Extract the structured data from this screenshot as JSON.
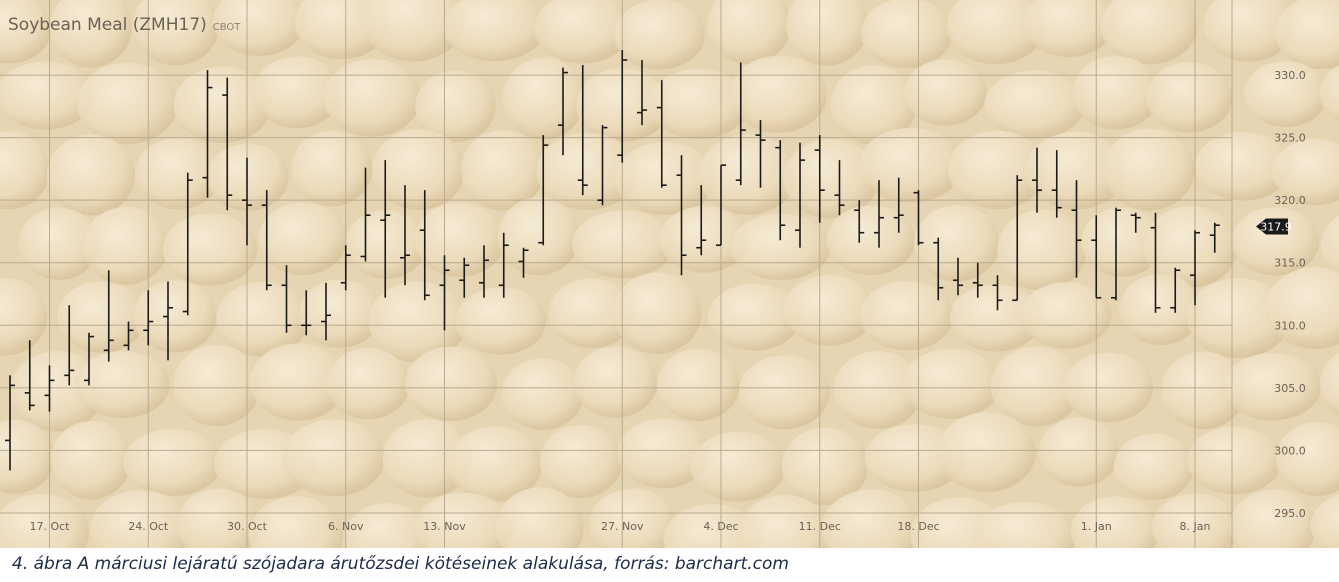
{
  "chart_data": {
    "type": "ohlc",
    "title": "Soybean Meal (ZMH17)",
    "exchange": "CBOT",
    "categories": [
      null,
      null,
      "17. Oct",
      null,
      null,
      null,
      null,
      "24. Oct",
      null,
      null,
      null,
      null,
      "30. Oct",
      null,
      null,
      null,
      null,
      "6. Nov",
      null,
      null,
      null,
      null,
      "13. Nov",
      null,
      null,
      null,
      null,
      null,
      null,
      null,
      null,
      "27. Nov",
      null,
      null,
      null,
      null,
      "4. Dec",
      null,
      null,
      null,
      null,
      "11. Dec",
      null,
      null,
      null,
      null,
      "18. Dec",
      null,
      null,
      null,
      null,
      null,
      null,
      null,
      null,
      "1. Jan",
      null,
      null,
      null,
      null,
      "8. Jan",
      null
    ],
    "open": [
      300.8,
      304.6,
      304.4,
      306.0,
      305.6,
      308.0,
      308.4,
      309.6,
      310.7,
      311.1,
      321.8,
      328.4,
      320.0,
      319.6,
      313.2,
      310.0,
      310.3,
      313.4,
      315.5,
      318.4,
      315.4,
      317.6,
      313.2,
      313.6,
      313.4,
      313.2,
      315.1,
      316.6,
      326.0,
      321.6,
      320.0,
      323.6,
      327.0,
      327.4,
      322.0,
      316.2,
      316.4,
      321.6,
      325.2,
      324.2,
      317.6,
      324.0,
      320.4,
      319.2,
      317.4,
      318.6,
      320.6,
      316.6,
      313.6,
      313.4,
      313.2,
      312.0,
      321.6,
      320.8,
      319.2,
      316.8,
      312.2,
      318.8,
      317.8,
      311.4,
      314.0,
      317.2
    ],
    "high": [
      306.0,
      308.8,
      306.8,
      311.6,
      309.4,
      314.4,
      310.3,
      312.8,
      313.5,
      322.2,
      330.4,
      329.8,
      323.4,
      320.8,
      314.8,
      312.8,
      313.4,
      316.4,
      322.6,
      323.2,
      321.2,
      320.8,
      315.6,
      315.4,
      316.4,
      317.4,
      316.2,
      325.2,
      330.6,
      330.8,
      326.0,
      332.0,
      331.2,
      329.6,
      323.6,
      321.2,
      322.8,
      331.0,
      326.4,
      324.8,
      324.6,
      325.2,
      323.2,
      320.0,
      321.6,
      321.8,
      320.8,
      317.0,
      315.4,
      315.0,
      314.0,
      322.0,
      324.2,
      324.0,
      321.6,
      318.8,
      319.4,
      319.0,
      319.0,
      314.6,
      317.6,
      318.2
    ],
    "low": [
      298.4,
      303.2,
      303.1,
      305.2,
      305.2,
      307.1,
      308.0,
      308.4,
      307.2,
      310.8,
      320.2,
      319.2,
      316.4,
      312.8,
      309.4,
      309.2,
      308.8,
      312.8,
      315.1,
      312.2,
      313.2,
      312.0,
      309.6,
      312.2,
      312.2,
      312.2,
      313.8,
      316.4,
      323.6,
      320.4,
      319.6,
      323.0,
      326.0,
      321.0,
      314.0,
      315.6,
      316.4,
      321.2,
      321.0,
      316.8,
      316.2,
      318.2,
      318.8,
      316.6,
      316.2,
      317.4,
      316.4,
      312.0,
      312.4,
      312.2,
      311.2,
      312.0,
      319.0,
      318.6,
      313.8,
      312.2,
      312.0,
      317.4,
      311.0,
      311.0,
      311.6,
      315.8
    ],
    "close": [
      305.2,
      303.6,
      305.6,
      306.4,
      309.1,
      308.8,
      309.6,
      310.3,
      311.4,
      321.6,
      329.0,
      320.4,
      319.6,
      313.2,
      310.0,
      310.0,
      310.8,
      315.6,
      318.8,
      318.8,
      315.6,
      312.4,
      314.4,
      314.8,
      315.2,
      316.4,
      316.0,
      324.4,
      330.2,
      321.2,
      325.8,
      331.2,
      327.2,
      321.2,
      315.6,
      316.8,
      322.8,
      325.6,
      324.8,
      318.0,
      323.2,
      320.8,
      319.6,
      317.4,
      318.6,
      318.8,
      316.6,
      313.0,
      313.2,
      313.2,
      312.0,
      321.6,
      320.8,
      319.4,
      316.8,
      312.2,
      319.2,
      318.6,
      311.4,
      314.4,
      317.4,
      318.0
    ],
    "color": "#1a1a1a",
    "last_price": 317.9,
    "ylim": [
      292.2,
      336.0
    ],
    "yticks": [
      {
        "value": 295,
        "label": "295.0"
      },
      {
        "value": 300,
        "label": "300.0"
      },
      {
        "value": 305,
        "label": "305.0"
      },
      {
        "value": 310,
        "label": "310.0"
      },
      {
        "value": 315,
        "label": "315.0"
      },
      {
        "value": 320,
        "label": "320.0"
      },
      {
        "value": 325,
        "label": "325.0"
      },
      {
        "value": 330,
        "label": "330.0"
      }
    ],
    "grid": true,
    "caption": "4. ábra A márciusi lejáratú szójadara árutőzsdei kötéseinek alakulása, forrás: barchart.com"
  }
}
